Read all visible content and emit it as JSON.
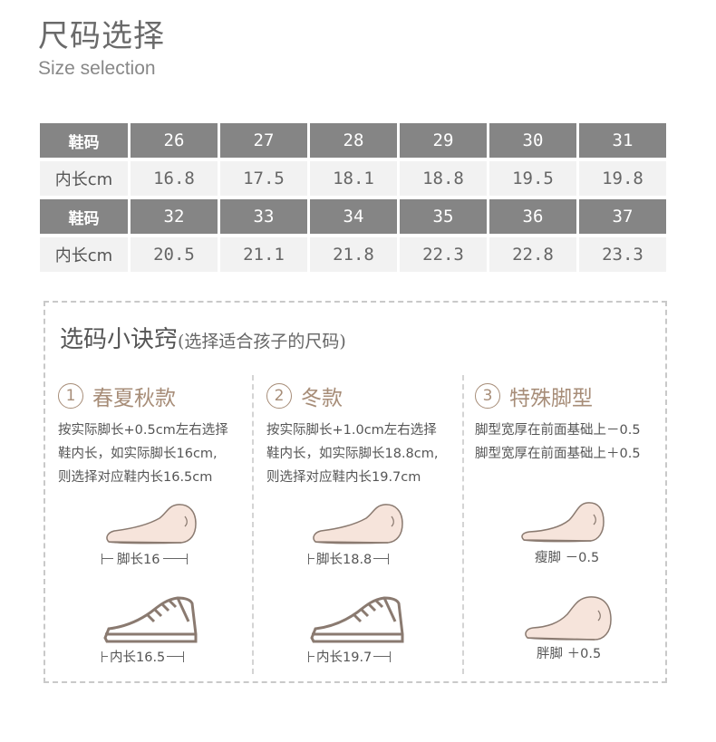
{
  "header": {
    "title_cn": "尺码选择",
    "title_en": "Size selection"
  },
  "size_table": {
    "row_label_size": "鞋码",
    "row_label_length": "内长cm",
    "sizes_1": [
      "26",
      "27",
      "28",
      "29",
      "30",
      "31"
    ],
    "lengths_1": [
      "16.8",
      "17.5",
      "18.1",
      "18.8",
      "19.5",
      "19.8"
    ],
    "sizes_2": [
      "32",
      "33",
      "34",
      "35",
      "36",
      "37"
    ],
    "lengths_2": [
      "20.5",
      "21.1",
      "21.8",
      "22.3",
      "22.8",
      "23.3"
    ]
  },
  "tips": {
    "title": "选码小诀窍",
    "subtitle": "(选择适合孩子的尺码)",
    "col1": {
      "num": "1",
      "heading": "春夏秋款",
      "line1": "按实际脚长+0.5cm左右选择",
      "line2": "鞋内长，如实际脚长16cm,",
      "line3": "则选择对应鞋内长16.5cm",
      "foot_label": "脚长16",
      "shoe_label": "内长16.5"
    },
    "col2": {
      "num": "2",
      "heading": "冬款",
      "line1": "按实际脚长+1.0cm左右选择",
      "line2": "鞋内长，如实际脚长18.8cm,",
      "line3": "则选择对应鞋内长19.7cm",
      "foot_label": "脚长18.8",
      "shoe_label": "内长19.7"
    },
    "col3": {
      "num": "3",
      "heading": "特殊脚型",
      "line1": "脚型宽厚在前面基础上－0.5",
      "line2": "脚型宽厚在前面基础上＋0.5",
      "thin_label": "瘦脚 －0.5",
      "fat_label": "胖脚 ＋0.5"
    }
  },
  "colors": {
    "header_bg": "#858585",
    "value_bg": "#f2f2f2",
    "accent": "#a78d78",
    "foot_fill": "#f6e4db",
    "shoe_stroke": "#8a7a70"
  },
  "icons": [
    "foot-icon",
    "sneaker-icon",
    "thin-foot-icon",
    "fat-foot-icon"
  ]
}
